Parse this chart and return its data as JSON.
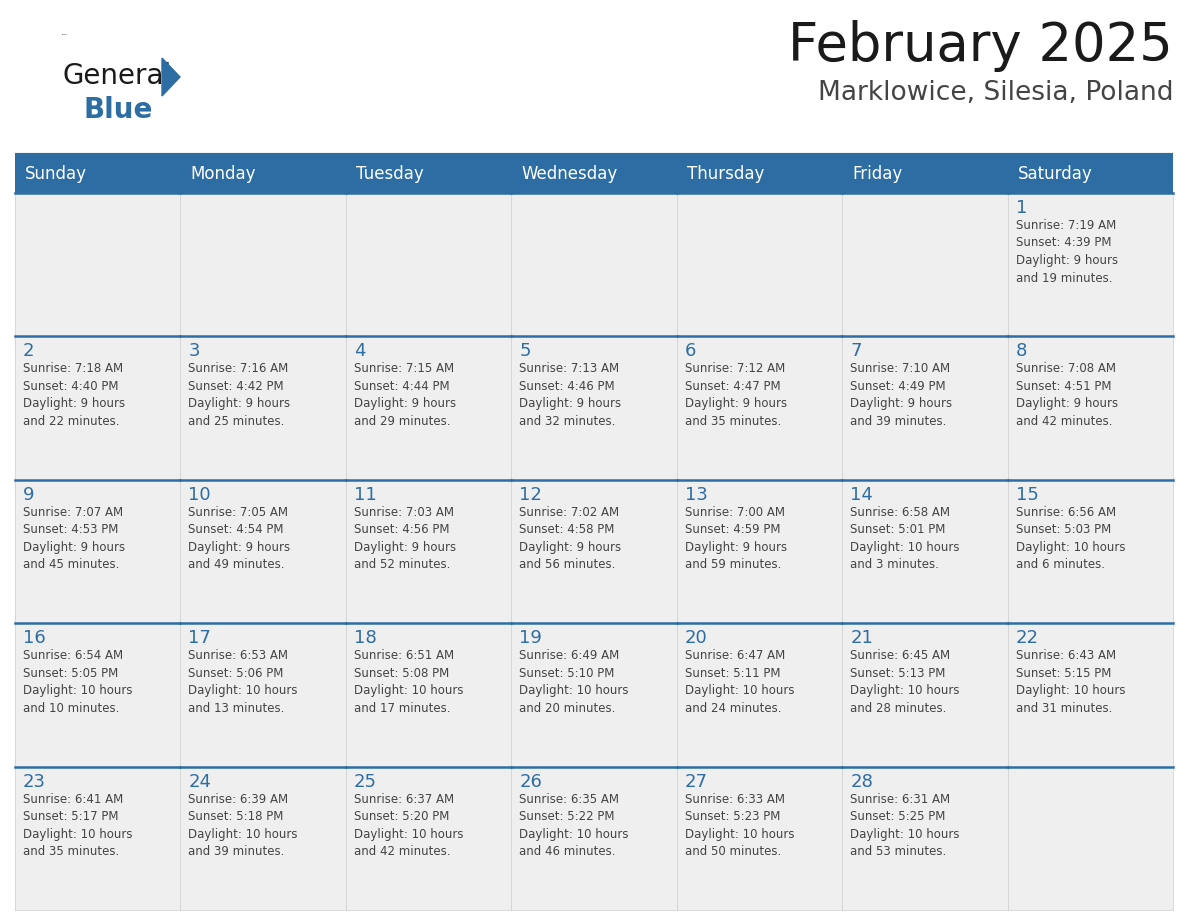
{
  "title": "February 2025",
  "subtitle": "Marklowice, Silesia, Poland",
  "header_bg": "#2E6DA4",
  "header_text_color": "#FFFFFF",
  "header_days": [
    "Sunday",
    "Monday",
    "Tuesday",
    "Wednesday",
    "Thursday",
    "Friday",
    "Saturday"
  ],
  "cell_bg": "#EFEFEF",
  "cell_bg_white": "#FFFFFF",
  "day_number_color": "#2E6DA4",
  "info_text_color": "#444444",
  "border_color": "#2E6DA4",
  "logo_color_general": "#1a1a1a",
  "logo_color_blue": "#2E6DA4",
  "logo_triangle_color": "#2E6DA4",
  "calendar_data": [
    [
      {
        "day": null,
        "info": ""
      },
      {
        "day": null,
        "info": ""
      },
      {
        "day": null,
        "info": ""
      },
      {
        "day": null,
        "info": ""
      },
      {
        "day": null,
        "info": ""
      },
      {
        "day": null,
        "info": ""
      },
      {
        "day": 1,
        "info": "Sunrise: 7:19 AM\nSunset: 4:39 PM\nDaylight: 9 hours\nand 19 minutes."
      }
    ],
    [
      {
        "day": 2,
        "info": "Sunrise: 7:18 AM\nSunset: 4:40 PM\nDaylight: 9 hours\nand 22 minutes."
      },
      {
        "day": 3,
        "info": "Sunrise: 7:16 AM\nSunset: 4:42 PM\nDaylight: 9 hours\nand 25 minutes."
      },
      {
        "day": 4,
        "info": "Sunrise: 7:15 AM\nSunset: 4:44 PM\nDaylight: 9 hours\nand 29 minutes."
      },
      {
        "day": 5,
        "info": "Sunrise: 7:13 AM\nSunset: 4:46 PM\nDaylight: 9 hours\nand 32 minutes."
      },
      {
        "day": 6,
        "info": "Sunrise: 7:12 AM\nSunset: 4:47 PM\nDaylight: 9 hours\nand 35 minutes."
      },
      {
        "day": 7,
        "info": "Sunrise: 7:10 AM\nSunset: 4:49 PM\nDaylight: 9 hours\nand 39 minutes."
      },
      {
        "day": 8,
        "info": "Sunrise: 7:08 AM\nSunset: 4:51 PM\nDaylight: 9 hours\nand 42 minutes."
      }
    ],
    [
      {
        "day": 9,
        "info": "Sunrise: 7:07 AM\nSunset: 4:53 PM\nDaylight: 9 hours\nand 45 minutes."
      },
      {
        "day": 10,
        "info": "Sunrise: 7:05 AM\nSunset: 4:54 PM\nDaylight: 9 hours\nand 49 minutes."
      },
      {
        "day": 11,
        "info": "Sunrise: 7:03 AM\nSunset: 4:56 PM\nDaylight: 9 hours\nand 52 minutes."
      },
      {
        "day": 12,
        "info": "Sunrise: 7:02 AM\nSunset: 4:58 PM\nDaylight: 9 hours\nand 56 minutes."
      },
      {
        "day": 13,
        "info": "Sunrise: 7:00 AM\nSunset: 4:59 PM\nDaylight: 9 hours\nand 59 minutes."
      },
      {
        "day": 14,
        "info": "Sunrise: 6:58 AM\nSunset: 5:01 PM\nDaylight: 10 hours\nand 3 minutes."
      },
      {
        "day": 15,
        "info": "Sunrise: 6:56 AM\nSunset: 5:03 PM\nDaylight: 10 hours\nand 6 minutes."
      }
    ],
    [
      {
        "day": 16,
        "info": "Sunrise: 6:54 AM\nSunset: 5:05 PM\nDaylight: 10 hours\nand 10 minutes."
      },
      {
        "day": 17,
        "info": "Sunrise: 6:53 AM\nSunset: 5:06 PM\nDaylight: 10 hours\nand 13 minutes."
      },
      {
        "day": 18,
        "info": "Sunrise: 6:51 AM\nSunset: 5:08 PM\nDaylight: 10 hours\nand 17 minutes."
      },
      {
        "day": 19,
        "info": "Sunrise: 6:49 AM\nSunset: 5:10 PM\nDaylight: 10 hours\nand 20 minutes."
      },
      {
        "day": 20,
        "info": "Sunrise: 6:47 AM\nSunset: 5:11 PM\nDaylight: 10 hours\nand 24 minutes."
      },
      {
        "day": 21,
        "info": "Sunrise: 6:45 AM\nSunset: 5:13 PM\nDaylight: 10 hours\nand 28 minutes."
      },
      {
        "day": 22,
        "info": "Sunrise: 6:43 AM\nSunset: 5:15 PM\nDaylight: 10 hours\nand 31 minutes."
      }
    ],
    [
      {
        "day": 23,
        "info": "Sunrise: 6:41 AM\nSunset: 5:17 PM\nDaylight: 10 hours\nand 35 minutes."
      },
      {
        "day": 24,
        "info": "Sunrise: 6:39 AM\nSunset: 5:18 PM\nDaylight: 10 hours\nand 39 minutes."
      },
      {
        "day": 25,
        "info": "Sunrise: 6:37 AM\nSunset: 5:20 PM\nDaylight: 10 hours\nand 42 minutes."
      },
      {
        "day": 26,
        "info": "Sunrise: 6:35 AM\nSunset: 5:22 PM\nDaylight: 10 hours\nand 46 minutes."
      },
      {
        "day": 27,
        "info": "Sunrise: 6:33 AM\nSunset: 5:23 PM\nDaylight: 10 hours\nand 50 minutes."
      },
      {
        "day": 28,
        "info": "Sunrise: 6:31 AM\nSunset: 5:25 PM\nDaylight: 10 hours\nand 53 minutes."
      },
      {
        "day": null,
        "info": ""
      }
    ]
  ]
}
